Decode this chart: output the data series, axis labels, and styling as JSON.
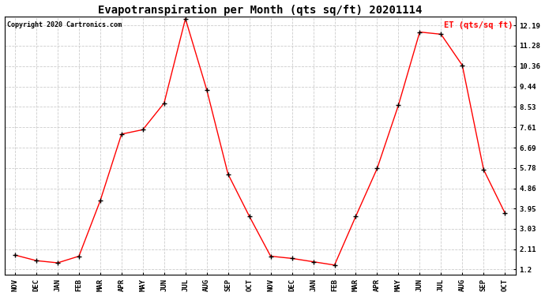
{
  "title": "Evapotranspiration per Month (qts sq/ft) 20201114",
  "copyright_text": "Copyright 2020 Cartronics.com",
  "legend_label": "ET (qts/sq ft)",
  "x_labels": [
    "NOV",
    "DEC",
    "JAN",
    "FEB",
    "MAR",
    "APR",
    "MAY",
    "JUN",
    "JUL",
    "AUG",
    "SEP",
    "OCT",
    "NOV",
    "DEC",
    "JAN",
    "FEB",
    "MAR",
    "APR",
    "MAY",
    "JUN",
    "JUL",
    "AUG",
    "SEP",
    "OCT"
  ],
  "y_values": [
    1.85,
    1.6,
    1.5,
    1.8,
    4.3,
    7.3,
    7.5,
    8.7,
    12.5,
    9.3,
    5.5,
    3.6,
    1.8,
    1.7,
    1.55,
    1.4,
    3.6,
    5.75,
    8.6,
    11.9,
    11.8,
    10.4,
    5.7,
    3.75
  ],
  "line_color": "red",
  "marker_color": "black",
  "marker": "+",
  "title_fontsize": 10,
  "tick_fontsize": 6.5,
  "copyright_fontsize": 6,
  "legend_fontsize": 7.5,
  "y_ticks": [
    1.2,
    2.11,
    3.03,
    3.95,
    4.86,
    5.78,
    6.69,
    7.61,
    8.53,
    9.44,
    10.36,
    11.28,
    12.19
  ],
  "background_color": "#ffffff",
  "grid_color": "#cccccc",
  "legend_color": "red",
  "copyright_color": "black",
  "font_family": "monospace"
}
